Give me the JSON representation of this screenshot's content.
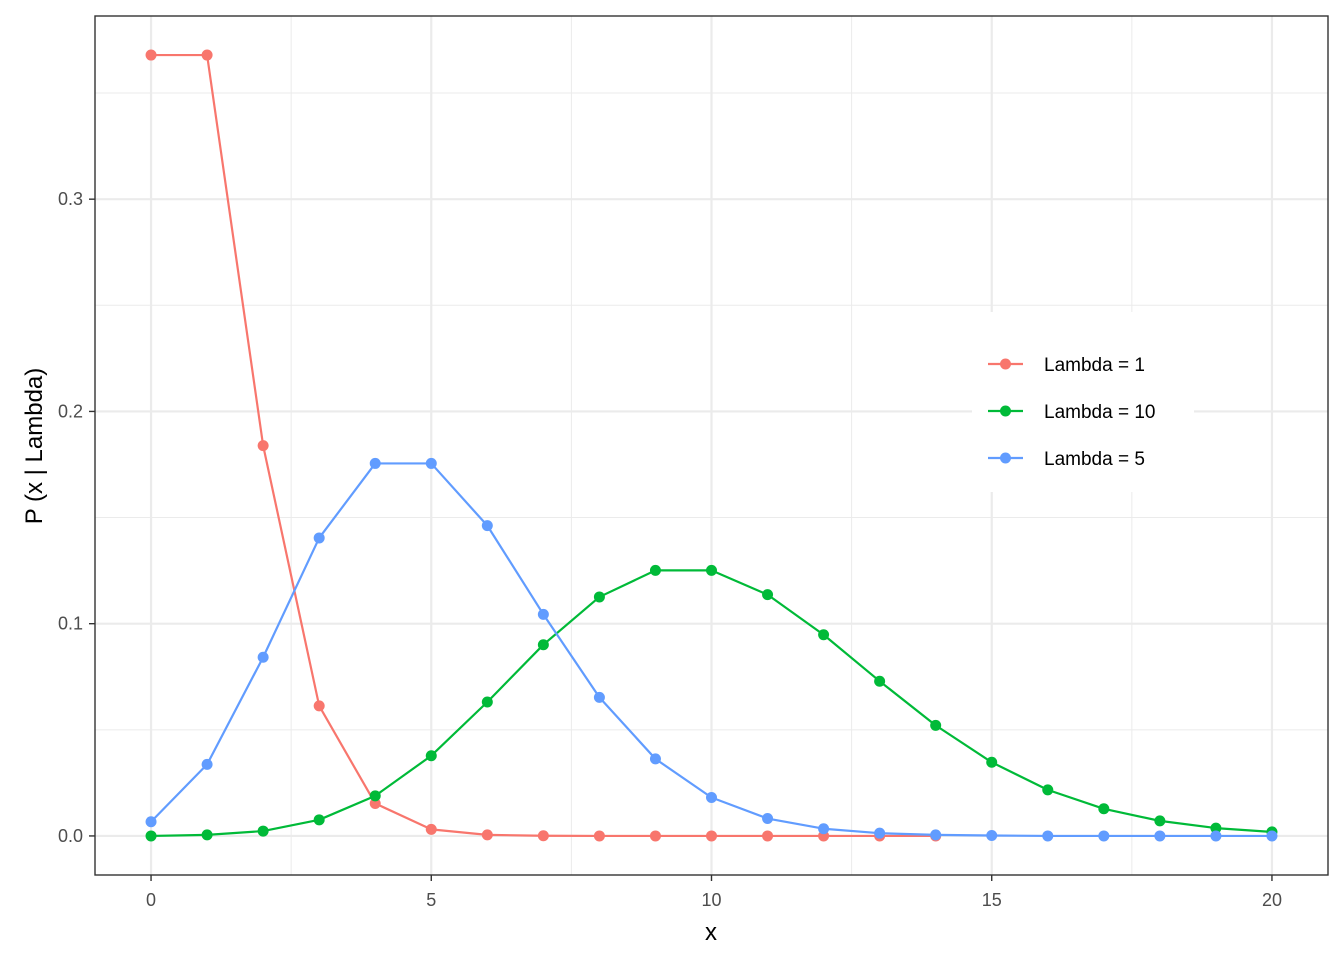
{
  "chart_data": {
    "type": "line",
    "title": "",
    "xlabel": "x",
    "ylabel": "P (x | Lambda)",
    "xlim": [
      -1,
      21
    ],
    "ylim": [
      -0.0184,
      0.3863
    ],
    "x_ticks": [
      0,
      5,
      10,
      15,
      20
    ],
    "x_tick_labels": [
      "0",
      "5",
      "10",
      "15",
      "20"
    ],
    "y_ticks": [
      0.0,
      0.1,
      0.2,
      0.3
    ],
    "y_tick_labels": [
      "0.0",
      "0.1",
      "0.2",
      "0.3"
    ],
    "grid": true,
    "legend_position": "right, inside",
    "x": [
      0,
      1,
      2,
      3,
      4,
      5,
      6,
      7,
      8,
      9,
      10,
      11,
      12,
      13,
      14,
      15,
      16,
      17,
      18,
      19,
      20
    ],
    "series": [
      {
        "name": "Lambda = 1",
        "color": "#F8766D",
        "x": [
          0,
          1,
          2,
          3,
          4,
          5,
          6,
          7,
          8,
          9,
          10,
          11,
          12,
          13,
          14
        ],
        "values": [
          0.3679,
          0.3679,
          0.1839,
          0.0613,
          0.0153,
          0.0031,
          0.0005,
          0.0001,
          0.0,
          0.0,
          0.0,
          0.0,
          0.0,
          0.0,
          0.0
        ]
      },
      {
        "name": "Lambda = 10",
        "color": "#00BA38",
        "x": [
          0,
          1,
          2,
          3,
          4,
          5,
          6,
          7,
          8,
          9,
          10,
          11,
          12,
          13,
          14,
          15,
          16,
          17,
          18,
          19,
          20
        ],
        "values": [
          0.0,
          0.0005,
          0.0023,
          0.0076,
          0.0189,
          0.0378,
          0.0631,
          0.0901,
          0.1126,
          0.1251,
          0.1251,
          0.1137,
          0.0948,
          0.0729,
          0.0521,
          0.0347,
          0.0217,
          0.0128,
          0.0071,
          0.0037,
          0.0019
        ]
      },
      {
        "name": "Lambda = 5",
        "color": "#619CFF",
        "x": [
          0,
          1,
          2,
          3,
          4,
          5,
          6,
          7,
          8,
          9,
          10,
          11,
          12,
          13,
          14,
          15,
          16,
          17,
          18,
          19,
          20
        ],
        "values": [
          0.0067,
          0.0337,
          0.0842,
          0.1404,
          0.1755,
          0.1755,
          0.1462,
          0.1044,
          0.0653,
          0.0363,
          0.0181,
          0.0082,
          0.0034,
          0.0013,
          0.0005,
          0.0002,
          0.0,
          0.0,
          0.0,
          0.0,
          0.0
        ]
      }
    ]
  }
}
